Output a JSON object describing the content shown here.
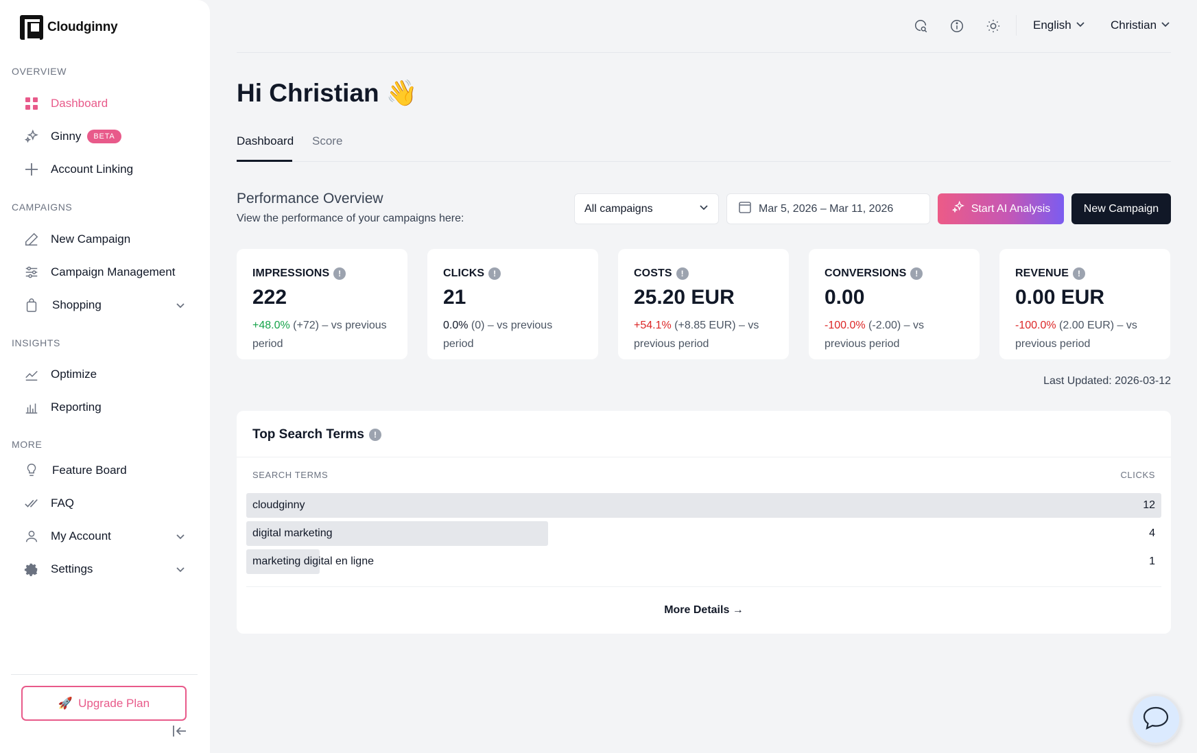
{
  "brand": {
    "name": "Cloudginny"
  },
  "sidebar": {
    "sections": {
      "overview": "OVERVIEW",
      "campaigns": "CAMPAIGNS",
      "insights": "INSIGHTS",
      "more": "MORE"
    },
    "items": {
      "dashboard": "Dashboard",
      "ginny": "Ginny",
      "ginny_badge": "BETA",
      "account_linking": "Account Linking",
      "new_campaign": "New Campaign",
      "campaign_management": "Campaign Management",
      "shopping": "Shopping",
      "optimize": "Optimize",
      "reporting": "Reporting",
      "feature_board": "Feature Board",
      "faq": "FAQ",
      "my_account": "My Account",
      "settings": "Settings"
    },
    "upgrade_label": "Upgrade Plan",
    "upgrade_emoji": "🚀"
  },
  "topbar": {
    "language": "English",
    "user": "Christian"
  },
  "header": {
    "greeting": "Hi Christian 👋",
    "tabs": [
      "Dashboard",
      "Score"
    ]
  },
  "performance": {
    "title": "Performance Overview",
    "subtitle": "View the performance of your campaigns here:",
    "campaign_filter": "All campaigns",
    "date_range": "Mar 5, 2026 – Mar 11, 2026",
    "ai_button": "Start AI Analysis",
    "new_campaign_button": "New Campaign",
    "cards": [
      {
        "label": "IMPRESSIONS",
        "value": "222",
        "delta": "+48.0%",
        "delta_abs": "(+72)",
        "suffix": " – vs previous period"
      },
      {
        "label": "CLICKS",
        "value": "21",
        "delta": "0.0%",
        "delta_abs": "(0)",
        "suffix": " – vs previous period"
      },
      {
        "label": "COSTS",
        "value": "25.20 EUR",
        "delta": "+54.1%",
        "delta_abs": "(+8.85 EUR)",
        "suffix": " – vs previous period"
      },
      {
        "label": "CONVERSIONS",
        "value": "0.00",
        "delta": "-100.0%",
        "delta_abs": "(-2.00)",
        "suffix": " – vs previous period"
      },
      {
        "label": "REVENUE",
        "value": "0.00 EUR",
        "delta": "-100.0%",
        "delta_abs": "(2.00 EUR)",
        "suffix": " – vs previous period"
      }
    ],
    "last_updated": "Last Updated: 2026-03-12"
  },
  "search_terms": {
    "title": "Top Search Terms",
    "col_term": "SEARCH TERMS",
    "col_clicks": "CLICKS",
    "rows": [
      {
        "term": "cloudginny",
        "clicks": "12",
        "share": 1.0
      },
      {
        "term": "digital marketing",
        "clicks": "4",
        "share": 0.33
      },
      {
        "term": "marketing digital en ligne",
        "clicks": "1",
        "share": 0.08
      }
    ],
    "more_details": "More Details →"
  },
  "colors": {
    "accent": "#e85a8a",
    "positive": "#16a34a",
    "negative": "#dc2626",
    "dark_button": "#111827"
  },
  "icons": {
    "top": [
      "search-chat-icon",
      "info-icon",
      "sun-icon"
    ],
    "chat": "chat-bubble-icon"
  }
}
